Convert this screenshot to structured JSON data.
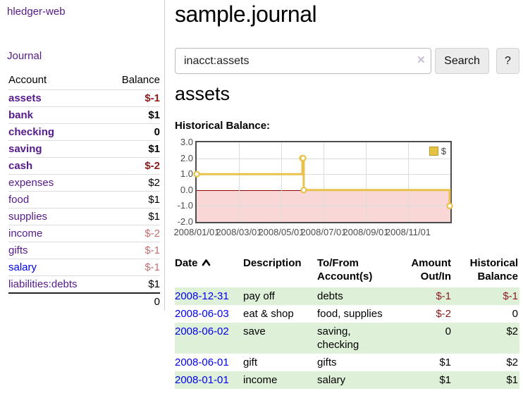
{
  "sidebar": {
    "brand": "hledger-web",
    "journal_link": "Journal",
    "accounts_table": {
      "headers": {
        "account": "Account",
        "balance": "Balance"
      },
      "rows": [
        {
          "name": "assets",
          "balance": "$-1",
          "depth": 0,
          "bold": true,
          "link": "visited",
          "neg": "strong"
        },
        {
          "name": "bank",
          "balance": "$1",
          "depth": 1,
          "bold": true,
          "link": "visited",
          "neg": "none"
        },
        {
          "name": "checking",
          "balance": "0",
          "depth": 2,
          "bold": true,
          "link": "visited",
          "neg": "none"
        },
        {
          "name": "saving",
          "balance": "$1",
          "depth": 2,
          "bold": true,
          "link": "visited",
          "neg": "none"
        },
        {
          "name": "cash",
          "balance": "$-2",
          "depth": 1,
          "bold": true,
          "link": "visited",
          "neg": "strong"
        },
        {
          "name": "expenses",
          "balance": "$2",
          "depth": 0,
          "bold": false,
          "link": "visited",
          "neg": "none"
        },
        {
          "name": "food",
          "balance": "$1",
          "depth": 1,
          "bold": false,
          "link": "visited",
          "neg": "none"
        },
        {
          "name": "supplies",
          "balance": "$1",
          "depth": 1,
          "bold": false,
          "link": "visited",
          "neg": "none"
        },
        {
          "name": "income",
          "balance": "$-2",
          "depth": 0,
          "bold": false,
          "link": "visited",
          "neg": "fade"
        },
        {
          "name": "gifts",
          "balance": "$-1",
          "depth": 1,
          "bold": false,
          "link": "visited",
          "neg": "fade"
        },
        {
          "name": "salary",
          "balance": "$-1",
          "depth": 1,
          "bold": false,
          "link": "new",
          "neg": "fade"
        },
        {
          "name": "liabilities:debts",
          "balance": "$1",
          "depth": 0,
          "bold": false,
          "link": "visited",
          "neg": "none"
        }
      ],
      "total": "0"
    }
  },
  "main": {
    "title": "sample.journal",
    "search": {
      "value": "inacct:assets",
      "clear_icon": "×",
      "button": "Search",
      "help_button": "?"
    },
    "account_heading": "assets",
    "chart_label": "Historical Balance:"
  },
  "chart_data": {
    "type": "line",
    "step": true,
    "title": "Historical Balance:",
    "series": [
      {
        "name": "$",
        "color": "#e8c24a",
        "points": [
          [
            "2008-01-01",
            1
          ],
          [
            "2008-06-01",
            2
          ],
          [
            "2008-06-02",
            2
          ],
          [
            "2008-06-03",
            0
          ],
          [
            "2008-12-31",
            -1
          ]
        ]
      }
    ],
    "x_ticks": [
      "2008/01/01",
      "2008/03/01",
      "2008/05/01",
      "2008/07/01",
      "2008/09/01",
      "2008/11/01"
    ],
    "y_ticks": [
      "3.0",
      "2.0",
      "1.0",
      "0.0",
      "-1.0",
      "-2.0"
    ],
    "ylim": [
      -2,
      3
    ],
    "xlim_months": [
      0,
      12
    ],
    "grid": true,
    "legend_position": "top-right",
    "legend": "$",
    "negative_region_color": "#f9d7d7",
    "zero_line_color": "#8b0000"
  },
  "register_table": {
    "headers": [
      {
        "label": "Date",
        "sort": "asc",
        "align": "left"
      },
      {
        "label": "Description",
        "align": "left"
      },
      {
        "label": "To/From\nAccount(s)",
        "align": "left"
      },
      {
        "label": "Amount\nOut/In",
        "align": "right"
      },
      {
        "label": "Historical\nBalance",
        "align": "right"
      }
    ],
    "rows": [
      {
        "date": "2008-12-31",
        "description": "pay off",
        "accounts": "debts",
        "amount": "$-1",
        "balance": "$-1"
      },
      {
        "date": "2008-06-03",
        "description": "eat & shop",
        "accounts": "food, supplies",
        "amount": "$-2",
        "balance": "0"
      },
      {
        "date": "2008-06-02",
        "description": "save",
        "accounts": "saving,\nchecking",
        "amount": "0",
        "balance": "$2"
      },
      {
        "date": "2008-06-01",
        "description": "gift",
        "accounts": "gifts",
        "amount": "$1",
        "balance": "$2"
      },
      {
        "date": "2008-01-01",
        "description": "income",
        "accounts": "salary",
        "amount": "$1",
        "balance": "$1"
      }
    ]
  },
  "colors": {
    "brand_purple": "#551A8B",
    "link_blue": "#0000EE",
    "negative_strong": "#8b1a1a",
    "negative_faded": "#bd7070",
    "row_stripe_green": "#dff0d8",
    "chart_line_gold": "#e8c24a",
    "chart_negative_pink": "#f9d7d7",
    "chart_zero_line": "#8b0000"
  }
}
